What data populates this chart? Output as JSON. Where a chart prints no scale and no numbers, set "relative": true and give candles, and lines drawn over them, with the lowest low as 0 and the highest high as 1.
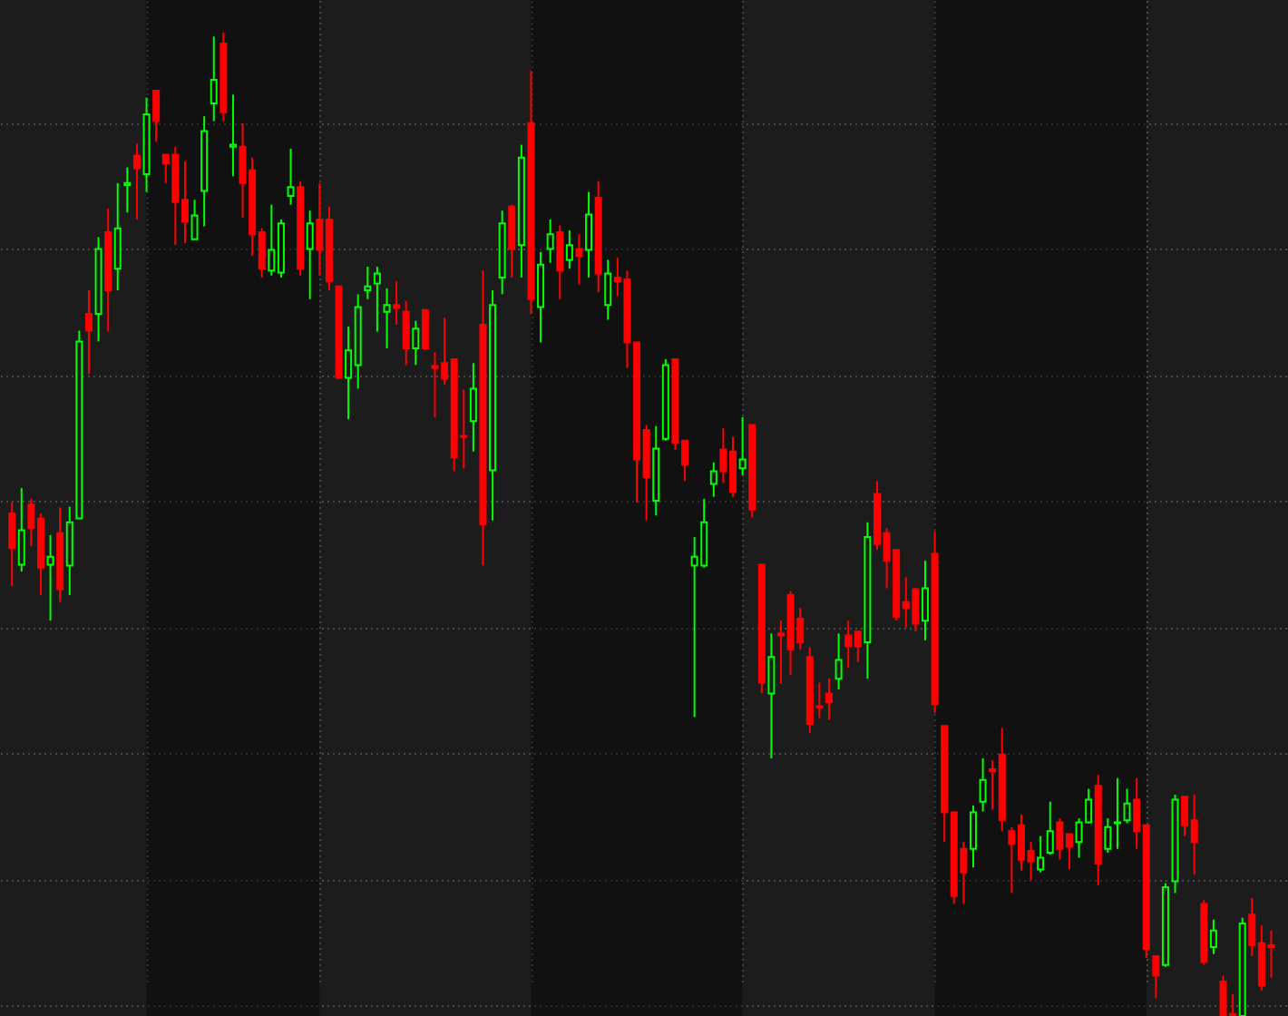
{
  "chart_data": {
    "type": "candlestick",
    "relative": true,
    "grid": true,
    "tick_labels": false,
    "categories": [
      null,
      null,
      null,
      null,
      null,
      null,
      null,
      null,
      null,
      null,
      null,
      null,
      null,
      null,
      null,
      null,
      null,
      null,
      null,
      null,
      null,
      null,
      null,
      null,
      null,
      null,
      null,
      null,
      null,
      null,
      null,
      null,
      null,
      null,
      null,
      null,
      null,
      null,
      null,
      null,
      null,
      null,
      null,
      null,
      null,
      null,
      null,
      null,
      null,
      null,
      null,
      null,
      null,
      null,
      null,
      null,
      null,
      null,
      null,
      null,
      null,
      null,
      null,
      null,
      null,
      null,
      null,
      null,
      null,
      null,
      null,
      null,
      null,
      null,
      null,
      null,
      null,
      null,
      null,
      null,
      null,
      null,
      null,
      null,
      null,
      null,
      null,
      null,
      null,
      null,
      null,
      null,
      null,
      null,
      null,
      null,
      null,
      null,
      null,
      null,
      null,
      null,
      null,
      null,
      null,
      null,
      null,
      null,
      null,
      null,
      null,
      null,
      null,
      null,
      null,
      null,
      null,
      null,
      null,
      null,
      null,
      null,
      null,
      null,
      null,
      null,
      null,
      null,
      null,
      null,
      null,
      null
    ],
    "ohlc": [
      [
        0.511,
        0.522,
        0.437,
        0.476
      ],
      [
        0.459,
        0.537,
        0.452,
        0.494
      ],
      [
        0.52,
        0.526,
        0.478,
        0.496
      ],
      [
        0.506,
        0.511,
        0.428,
        0.456
      ],
      [
        0.459,
        0.489,
        0.402,
        0.467
      ],
      [
        0.491,
        0.517,
        0.421,
        0.434
      ],
      [
        0.458,
        0.518,
        0.428,
        0.502
      ],
      [
        0.506,
        0.697,
        0.506,
        0.686
      ],
      [
        0.714,
        0.738,
        0.653,
        0.697
      ],
      [
        0.714,
        0.792,
        0.686,
        0.78
      ],
      [
        0.797,
        0.821,
        0.696,
        0.738
      ],
      [
        0.76,
        0.847,
        0.738,
        0.801
      ],
      [
        0.845,
        0.863,
        0.817,
        0.847
      ],
      [
        0.875,
        0.887,
        0.81,
        0.862
      ],
      [
        0.856,
        0.934,
        0.838,
        0.917
      ],
      [
        0.941,
        0.941,
        0.889,
        0.91
      ],
      [
        0.876,
        0.876,
        0.847,
        0.867
      ],
      [
        0.876,
        0.884,
        0.784,
        0.828
      ],
      [
        0.83,
        0.869,
        0.786,
        0.808
      ],
      [
        0.79,
        0.83,
        0.79,
        0.814
      ],
      [
        0.839,
        0.915,
        0.803,
        0.9
      ],
      [
        0.928,
        0.996,
        0.91,
        0.952
      ],
      [
        0.989,
        1,
        0.91,
        0.919
      ],
      [
        0.884,
        0.937,
        0.854,
        0.886
      ],
      [
        0.884,
        0.908,
        0.812,
        0.847
      ],
      [
        0.86,
        0.873,
        0.773,
        0.795
      ],
      [
        0.797,
        0.801,
        0.751,
        0.76
      ],
      [
        0.758,
        0.825,
        0.753,
        0.779
      ],
      [
        0.756,
        0.81,
        0.751,
        0.806
      ],
      [
        0.834,
        0.882,
        0.825,
        0.843
      ],
      [
        0.843,
        0.849,
        0.753,
        0.76
      ],
      [
        0.78,
        0.819,
        0.729,
        0.806
      ],
      [
        0.81,
        0.847,
        0.753,
        0.779
      ],
      [
        0.81,
        0.823,
        0.738,
        0.747
      ],
      [
        0.742,
        0.742,
        0.648,
        0.649
      ],
      [
        0.649,
        0.701,
        0.607,
        0.677
      ],
      [
        0.662,
        0.734,
        0.638,
        0.721
      ],
      [
        0.738,
        0.762,
        0.729,
        0.742
      ],
      [
        0.745,
        0.762,
        0.696,
        0.755
      ],
      [
        0.716,
        0.74,
        0.679,
        0.723
      ],
      [
        0.723,
        0.747,
        0.703,
        0.72
      ],
      [
        0.716,
        0.727,
        0.662,
        0.679
      ],
      [
        0.679,
        0.707,
        0.662,
        0.699
      ],
      [
        0.718,
        0.718,
        0.677,
        0.679
      ],
      [
        0.661,
        0.675,
        0.609,
        0.659
      ],
      [
        0.664,
        0.71,
        0.642,
        0.648
      ],
      [
        0.668,
        0.668,
        0.554,
        0.568
      ],
      [
        0.59,
        0.637,
        0.557,
        0.589
      ],
      [
        0.605,
        0.664,
        0.574,
        0.638
      ],
      [
        0.703,
        0.758,
        0.458,
        0.5
      ],
      [
        0.555,
        0.738,
        0.504,
        0.723
      ],
      [
        0.751,
        0.819,
        0.734,
        0.806
      ],
      [
        0.823,
        0.825,
        0.751,
        0.78
      ],
      [
        0.784,
        0.886,
        0.751,
        0.873
      ],
      [
        0.908,
        0.961,
        0.714,
        0.729
      ],
      [
        0.721,
        0.777,
        0.685,
        0.764
      ],
      [
        0.78,
        0.81,
        0.766,
        0.795
      ],
      [
        0.797,
        0.804,
        0.729,
        0.758
      ],
      [
        0.769,
        0.799,
        0.76,
        0.784
      ],
      [
        0.78,
        0.795,
        0.744,
        0.773
      ],
      [
        0.779,
        0.838,
        0.751,
        0.815
      ],
      [
        0.832,
        0.849,
        0.736,
        0.755
      ],
      [
        0.723,
        0.769,
        0.708,
        0.755
      ],
      [
        0.751,
        0.771,
        0.732,
        0.747
      ],
      [
        0.749,
        0.758,
        0.659,
        0.685
      ],
      [
        0.685,
        0.685,
        0.522,
        0.566
      ],
      [
        0.596,
        0.601,
        0.504,
        0.548
      ],
      [
        0.524,
        0.6,
        0.509,
        0.577
      ],
      [
        0.587,
        0.668,
        0.585,
        0.662
      ],
      [
        0.668,
        0.668,
        0.576,
        0.583
      ],
      [
        0.585,
        0.585,
        0.544,
        0.561
      ],
      [
        0.458,
        0.487,
        0.304,
        0.467
      ],
      [
        0.458,
        0.526,
        0.456,
        0.502
      ],
      [
        0.541,
        0.563,
        0.528,
        0.554
      ],
      [
        0.576,
        0.598,
        0.542,
        0.554
      ],
      [
        0.574,
        0.589,
        0.528,
        0.533
      ],
      [
        0.557,
        0.609,
        0.55,
        0.566
      ],
      [
        0.601,
        0.601,
        0.507,
        0.515
      ],
      [
        0.459,
        0.459,
        0.328,
        0.339
      ],
      [
        0.328,
        0.389,
        0.262,
        0.365
      ],
      [
        0.389,
        0.402,
        0.338,
        0.387
      ],
      [
        0.428,
        0.432,
        0.347,
        0.373
      ],
      [
        0.404,
        0.415,
        0.373,
        0.38
      ],
      [
        0.365,
        0.375,
        0.288,
        0.297
      ],
      [
        0.315,
        0.339,
        0.303,
        0.314
      ],
      [
        0.328,
        0.343,
        0.301,
        0.319
      ],
      [
        0.343,
        0.389,
        0.332,
        0.362
      ],
      [
        0.387,
        0.402,
        0.354,
        0.376
      ],
      [
        0.391,
        0.391,
        0.36,
        0.376
      ],
      [
        0.38,
        0.502,
        0.343,
        0.487
      ],
      [
        0.531,
        0.544,
        0.474,
        0.48
      ],
      [
        0.491,
        0.496,
        0.435,
        0.463
      ],
      [
        0.474,
        0.474,
        0.402,
        0.406
      ],
      [
        0.421,
        0.446,
        0.395,
        0.415
      ],
      [
        0.434,
        0.435,
        0.391,
        0.399
      ],
      [
        0.402,
        0.463,
        0.382,
        0.435
      ],
      [
        0.47,
        0.493,
        0.308,
        0.317
      ],
      [
        0.295,
        0.295,
        0.177,
        0.207
      ],
      [
        0.207,
        0.208,
        0.114,
        0.122
      ],
      [
        0.17,
        0.177,
        0.114,
        0.146
      ],
      [
        0.17,
        0.214,
        0.151,
        0.207
      ],
      [
        0.218,
        0.262,
        0.208,
        0.24
      ],
      [
        0.251,
        0.26,
        0.21,
        0.249
      ],
      [
        0.266,
        0.293,
        0.188,
        0.199
      ],
      [
        0.188,
        0.192,
        0.125,
        0.175
      ],
      [
        0.194,
        0.205,
        0.148,
        0.159
      ],
      [
        0.168,
        0.177,
        0.138,
        0.157
      ],
      [
        0.149,
        0.183,
        0.146,
        0.161
      ],
      [
        0.166,
        0.218,
        0.164,
        0.188
      ],
      [
        0.197,
        0.201,
        0.159,
        0.17
      ],
      [
        0.185,
        0.185,
        0.149,
        0.172
      ],
      [
        0.177,
        0.201,
        0.161,
        0.197
      ],
      [
        0.197,
        0.231,
        0.196,
        0.22
      ],
      [
        0.234,
        0.245,
        0.133,
        0.155
      ],
      [
        0.17,
        0.201,
        0.166,
        0.192
      ],
      [
        0.196,
        0.242,
        0.17,
        0.197
      ],
      [
        0.199,
        0.231,
        0.196,
        0.216
      ],
      [
        0.22,
        0.242,
        0.17,
        0.188
      ],
      [
        0.194,
        0.194,
        0.059,
        0.068
      ],
      [
        0.061,
        0.061,
        0.018,
        0.041
      ],
      [
        0.052,
        0.135,
        0.05,
        0.131
      ],
      [
        0.137,
        0.225,
        0.125,
        0.22
      ],
      [
        0.223,
        0.223,
        0.183,
        0.194
      ],
      [
        0.199,
        0.225,
        0.144,
        0.177
      ],
      [
        0.114,
        0.118,
        0.052,
        0.055
      ],
      [
        0.07,
        0.098,
        0.063,
        0.087
      ],
      [
        0.035,
        0.041,
        0,
        0
      ],
      [
        0.002,
        0.022,
        0,
        0
      ],
      [
        0,
        0.1,
        0,
        0.094
      ],
      [
        0.103,
        0.12,
        0.061,
        0.072
      ],
      [
        0.074,
        0.092,
        0.026,
        0.031
      ],
      [
        0.072,
        0.087,
        0.039,
        0.07
      ]
    ],
    "colors": [
      "#ff0000",
      "#00ff00",
      "#ff0000",
      "#ff0000",
      "#00ff00",
      "#ff0000",
      "#00ff00",
      "#00ff00",
      "#ff0000",
      "#00ff00",
      "#ff0000",
      "#00ff00",
      "#00ff00",
      "#ff0000",
      "#00ff00",
      "#ff0000",
      "#ff0000",
      "#ff0000",
      "#ff0000",
      "#00ff00",
      "#00ff00",
      "#00ff00",
      "#ff0000",
      "#00ff00",
      "#ff0000",
      "#ff0000",
      "#ff0000",
      "#00ff00",
      "#00ff00",
      "#00ff00",
      "#ff0000",
      "#00ff00",
      "#ff0000",
      "#ff0000",
      "#ff0000",
      "#00ff00",
      "#00ff00",
      "#00ff00",
      "#00ff00",
      "#00ff00",
      "#ff0000",
      "#ff0000",
      "#00ff00",
      "#ff0000",
      "#ff0000",
      "#ff0000",
      "#ff0000",
      "#ff0000",
      "#00ff00",
      "#ff0000",
      "#00ff00",
      "#00ff00",
      "#ff0000",
      "#00ff00",
      "#ff0000",
      "#00ff00",
      "#00ff00",
      "#ff0000",
      "#00ff00",
      "#ff0000",
      "#00ff00",
      "#ff0000",
      "#00ff00",
      "#ff0000",
      "#ff0000",
      "#ff0000",
      "#ff0000",
      "#00ff00",
      "#00ff00",
      "#ff0000",
      "#ff0000",
      "#00ff00",
      "#00ff00",
      "#00ff00",
      "#ff0000",
      "#ff0000",
      "#00ff00",
      "#ff0000",
      "#ff0000",
      "#00ff00",
      "#ff0000",
      "#ff0000",
      "#ff0000",
      "#ff0000",
      "#ff0000",
      "#ff0000",
      "#00ff00",
      "#ff0000",
      "#ff0000",
      "#00ff00",
      "#ff0000",
      "#ff0000",
      "#ff0000",
      "#ff0000",
      "#ff0000",
      "#00ff00",
      "#ff0000",
      "#ff0000",
      "#ff0000",
      "#ff0000",
      "#00ff00",
      "#00ff00",
      "#ff0000",
      "#ff0000",
      "#ff0000",
      "#ff0000",
      "#ff0000",
      "#00ff00",
      "#00ff00",
      "#ff0000",
      "#ff0000",
      "#00ff00",
      "#00ff00",
      "#ff0000",
      "#00ff00",
      "#00ff00",
      "#00ff00",
      "#ff0000",
      "#ff0000",
      "#ff0000",
      "#00ff00",
      "#00ff00",
      "#ff0000",
      "#ff0000",
      "#ff0000",
      "#00ff00",
      "#ff0000",
      "#ff0000",
      "#00ff00",
      "#ff0000",
      "#ff0000",
      "#ff0000"
    ]
  }
}
